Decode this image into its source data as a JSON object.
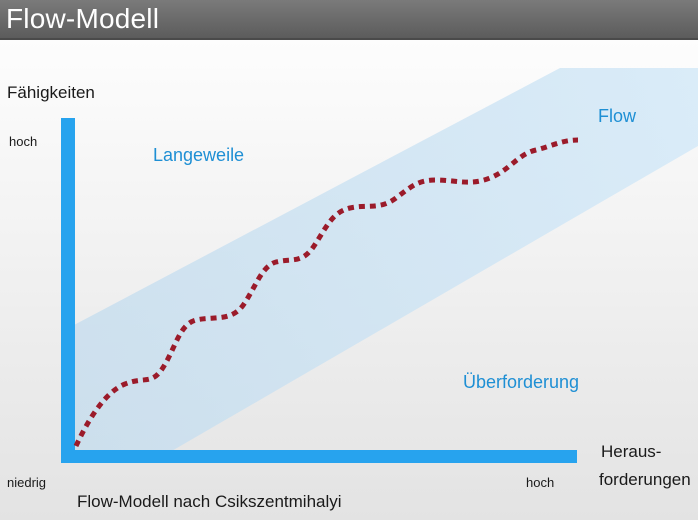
{
  "title": "Flow-Modell",
  "y_axis": {
    "label": "Fähigkeiten",
    "high_label": "hoch",
    "low_label": "niedrig"
  },
  "x_axis": {
    "label_line1": "Heraus-",
    "label_line2": "forderungen",
    "high_label": "hoch"
  },
  "zones": {
    "boredom": "Langeweile",
    "flow": "Flow",
    "overload": "Überforderung"
  },
  "caption": "Flow-Modell nach Csikszentmihalyi",
  "colors": {
    "axis": "#27a3ee",
    "flow_band": "#cfe6f5",
    "flow_path": "#9b1b2a",
    "zone_text": "#1e8fd4",
    "title_bar": "#6b6b6b"
  }
}
